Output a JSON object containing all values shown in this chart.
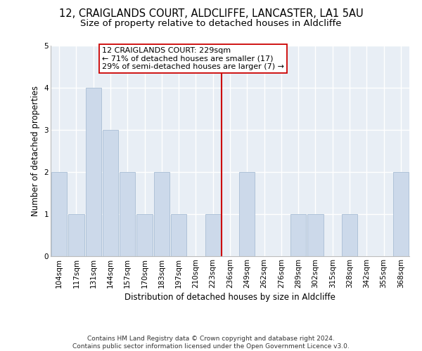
{
  "title_line1": "12, CRAIGLANDS COURT, ALDCLIFFE, LANCASTER, LA1 5AU",
  "title_line2": "Size of property relative to detached houses in Aldcliffe",
  "xlabel": "Distribution of detached houses by size in Aldcliffe",
  "ylabel": "Number of detached properties",
  "bins": [
    "104sqm",
    "117sqm",
    "131sqm",
    "144sqm",
    "157sqm",
    "170sqm",
    "183sqm",
    "197sqm",
    "210sqm",
    "223sqm",
    "236sqm",
    "249sqm",
    "262sqm",
    "276sqm",
    "289sqm",
    "302sqm",
    "315sqm",
    "328sqm",
    "342sqm",
    "355sqm",
    "368sqm"
  ],
  "counts": [
    2,
    1,
    4,
    3,
    2,
    1,
    2,
    1,
    0,
    1,
    0,
    2,
    0,
    0,
    1,
    1,
    0,
    1,
    0,
    0,
    2
  ],
  "bar_color": "#ccd9ea",
  "bar_edge_color": "#a8bdd4",
  "subject_line_idx": 9.5,
  "subject_line_color": "#cc0000",
  "annotation_line1": "12 CRAIGLANDS COURT: 229sqm",
  "annotation_line2": "← 71% of detached houses are smaller (17)",
  "annotation_line3": "29% of semi-detached houses are larger (7) →",
  "annotation_box_color": "#ffffff",
  "annotation_box_edge": "#cc0000",
  "ylim": [
    0,
    5
  ],
  "yticks": [
    0,
    1,
    2,
    3,
    4,
    5
  ],
  "background_color": "#e8eef5",
  "grid_color": "#ffffff",
  "footnote_line1": "Contains HM Land Registry data © Crown copyright and database right 2024.",
  "footnote_line2": "Contains public sector information licensed under the Open Government Licence v3.0.",
  "title1_fontsize": 10.5,
  "title2_fontsize": 9.5,
  "axis_label_fontsize": 8.5,
  "tick_fontsize": 7.5,
  "annotation_fontsize": 8,
  "footnote_fontsize": 6.5
}
